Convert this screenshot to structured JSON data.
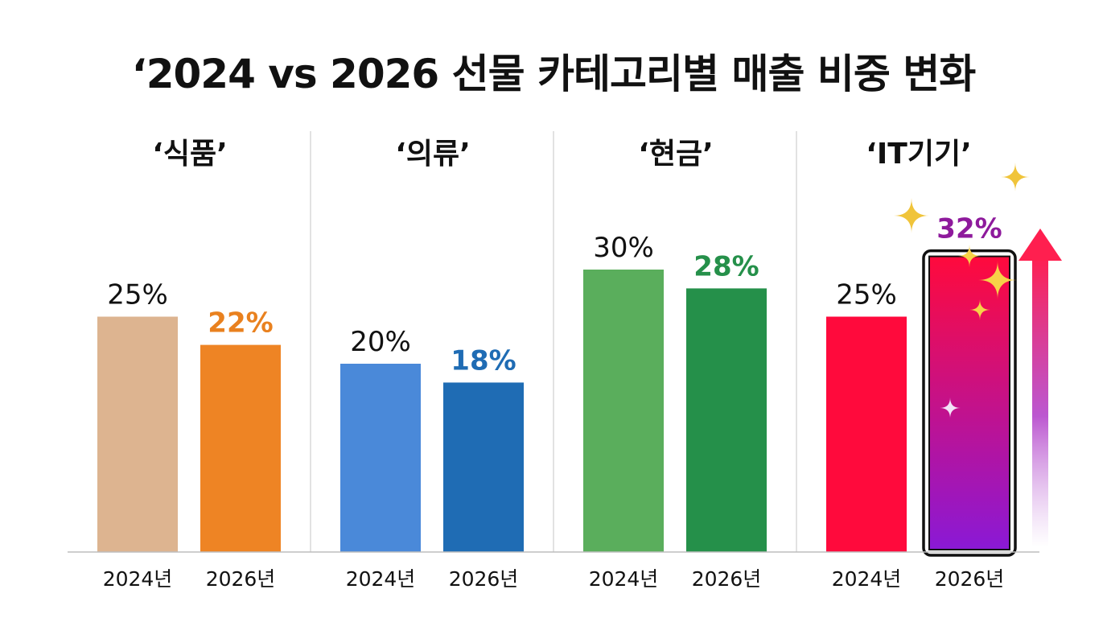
{
  "chart_data": {
    "type": "bar",
    "title": "‘2024 vs 2026 선물 카테고리별 매출 비중 변화",
    "categories": [
      "2024년",
      "2026년"
    ],
    "ylim": [
      0,
      32
    ],
    "groups": [
      {
        "name": "‘식품’",
        "values": [
          25,
          22
        ],
        "labels": [
          "25%",
          "22%"
        ],
        "colors": [
          "#ddb490",
          "#ee8424"
        ],
        "label_colors": [
          "#111111",
          "#e9811f"
        ]
      },
      {
        "name": "‘의류’",
        "values": [
          20,
          18
        ],
        "labels": [
          "20%",
          "18%"
        ],
        "colors": [
          "#4a89d9",
          "#1f6cb4"
        ],
        "label_colors": [
          "#111111",
          "#1f6cb4"
        ]
      },
      {
        "name": "‘현금’",
        "values": [
          30,
          28
        ],
        "labels": [
          "30%",
          "28%"
        ],
        "colors": [
          "#5aae5c",
          "#25904a"
        ],
        "label_colors": [
          "#111111",
          "#25904a"
        ]
      },
      {
        "name": "‘IT기기’",
        "values": [
          25,
          32
        ],
        "labels": [
          "25%",
          "32%"
        ],
        "colors": [
          "#ff0a3c",
          "gradient"
        ],
        "label_colors": [
          "#111111",
          "#8e1a9c"
        ],
        "highlight": true
      }
    ],
    "gradient_colors": [
      "#ff0a3c",
      "#8a19d6"
    ],
    "grid": false,
    "legend": "none"
  }
}
